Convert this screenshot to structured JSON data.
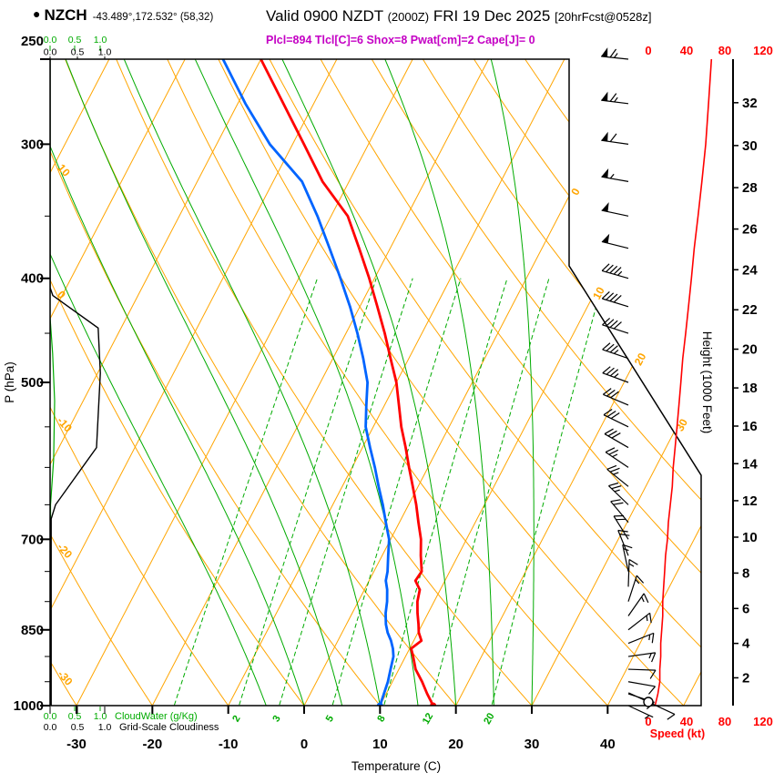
{
  "header": {
    "bullet": "●",
    "station": "NZCH",
    "coords": "-43.489°,172.532° (58,32)",
    "valid_time": "Valid 0900 NZDT",
    "valid_utc": "(2000Z)",
    "valid_date": "FRI 19 Dec 2025",
    "fcst_ref": "[20hrFcst@0528z]",
    "indices": "Plcl=894 Tlcl[C]=6 Shox=8 Pwat[cm]=2 Cape[J]= 0"
  },
  "chart_data": {
    "type": "line",
    "subtype": "skew-t log-p sounding",
    "pressure_axis": {
      "label": "P (hPa)",
      "units": "hPa",
      "range": [
        1000,
        250
      ],
      "major_ticks": [
        250,
        300,
        400,
        500,
        700,
        850,
        1000
      ],
      "minor_ticks": [
        350,
        450,
        550,
        600,
        650,
        750,
        800,
        900,
        950
      ]
    },
    "temperature_axis": {
      "label": "Temperature (C)",
      "units": "C",
      "ticks": [
        -30,
        -20,
        -10,
        0,
        10,
        20,
        30,
        40
      ]
    },
    "height_axis": {
      "label": "Height (1000 Feet)",
      "units": "1000 ft",
      "ticks": [
        2,
        4,
        6,
        8,
        10,
        12,
        14,
        16,
        18,
        20,
        22,
        24,
        26,
        28,
        30,
        32
      ]
    },
    "speed_axis": {
      "label": "Speed (kt)",
      "units": "kt",
      "ticks": [
        0,
        40,
        80,
        120
      ]
    },
    "cloud_axes": {
      "ticks": [
        "0.0",
        "0.5",
        "1.0"
      ],
      "cloudwater_label": "CloudWater (g/Kg)",
      "cloudiness_label": "Grid-Scale Cloudiness"
    },
    "background_lines": {
      "isotherms_c": {
        "min": -70,
        "max": 50,
        "step": 10
      },
      "dry_adiabats_c": {
        "min": -30,
        "max": 140,
        "step": 10
      },
      "dry_adiabat_edge_labels": [
        10,
        0,
        -10,
        -20,
        -30
      ],
      "isotherm_edge_labels": [
        0,
        10,
        20,
        30
      ],
      "mixing_ratio_gkg": [
        1,
        2,
        3,
        5,
        8,
        12,
        20
      ],
      "moist_adiabats_c": [
        -5,
        0,
        5,
        10,
        15,
        20,
        25,
        30
      ]
    },
    "temperature_profile": [
      [
        1000,
        17
      ],
      [
        975,
        15.4
      ],
      [
        950,
        13.9
      ],
      [
        925,
        12.2
      ],
      [
        900,
        11
      ],
      [
        885,
        10.2
      ],
      [
        870,
        11
      ],
      [
        855,
        10.1
      ],
      [
        840,
        9.5
      ],
      [
        820,
        8.6
      ],
      [
        800,
        7.8
      ],
      [
        780,
        7.3
      ],
      [
        765,
        6.1
      ],
      [
        750,
        6.3
      ],
      [
        725,
        5.1
      ],
      [
        700,
        4
      ],
      [
        675,
        2.5
      ],
      [
        650,
        1
      ],
      [
        625,
        -0.7
      ],
      [
        600,
        -2.5
      ],
      [
        575,
        -4.3
      ],
      [
        550,
        -6.3
      ],
      [
        525,
        -8.1
      ],
      [
        500,
        -10
      ],
      [
        475,
        -12.4
      ],
      [
        450,
        -14.9
      ],
      [
        425,
        -17.7
      ],
      [
        400,
        -20.7
      ],
      [
        375,
        -24.1
      ],
      [
        350,
        -27.8
      ],
      [
        325,
        -33.5
      ],
      [
        300,
        -38.5
      ],
      [
        275,
        -44
      ],
      [
        250,
        -50
      ]
    ],
    "dewpoint_profile": [
      [
        1000,
        10
      ],
      [
        975,
        9.7
      ],
      [
        950,
        9.4
      ],
      [
        925,
        8.9
      ],
      [
        900,
        8.4
      ],
      [
        885,
        7.8
      ],
      [
        870,
        7
      ],
      [
        855,
        6
      ],
      [
        840,
        5.2
      ],
      [
        820,
        4.4
      ],
      [
        800,
        3.8
      ],
      [
        780,
        3
      ],
      [
        765,
        2.2
      ],
      [
        750,
        1.8
      ],
      [
        725,
        0.8
      ],
      [
        700,
        -0.2
      ],
      [
        675,
        -1.8
      ],
      [
        650,
        -3.4
      ],
      [
        625,
        -5.2
      ],
      [
        600,
        -7
      ],
      [
        575,
        -9
      ],
      [
        550,
        -11
      ],
      [
        525,
        -12.4
      ],
      [
        500,
        -13.8
      ],
      [
        475,
        -16
      ],
      [
        450,
        -18.5
      ],
      [
        425,
        -21.3
      ],
      [
        400,
        -24.5
      ],
      [
        375,
        -28
      ],
      [
        350,
        -31.8
      ],
      [
        325,
        -36.2
      ],
      [
        300,
        -43
      ],
      [
        275,
        -49
      ],
      [
        250,
        -55
      ]
    ],
    "wind_profile_p_dir_kt": [
      [
        1000,
        115,
        7
      ],
      [
        975,
        108,
        10
      ],
      [
        950,
        100,
        12
      ],
      [
        925,
        92,
        12
      ],
      [
        900,
        82,
        13
      ],
      [
        875,
        68,
        13
      ],
      [
        850,
        52,
        14
      ],
      [
        825,
        35,
        15
      ],
      [
        800,
        18,
        15
      ],
      [
        775,
        2,
        16
      ],
      [
        750,
        348,
        17
      ],
      [
        725,
        338,
        18
      ],
      [
        700,
        328,
        20
      ],
      [
        675,
        320,
        21
      ],
      [
        650,
        314,
        23
      ],
      [
        625,
        309,
        25
      ],
      [
        600,
        304,
        26
      ],
      [
        575,
        300,
        28
      ],
      [
        550,
        296,
        30
      ],
      [
        525,
        293,
        32
      ],
      [
        500,
        290,
        34
      ],
      [
        475,
        289,
        36
      ],
      [
        450,
        288,
        39
      ],
      [
        425,
        287,
        42
      ],
      [
        400,
        286,
        45
      ],
      [
        375,
        284,
        48
      ],
      [
        350,
        282,
        52
      ],
      [
        325,
        280,
        56
      ],
      [
        300,
        278,
        60
      ],
      [
        275,
        277,
        63
      ],
      [
        250,
        276,
        66
      ]
    ],
    "surface_barb": {
      "dir": 115,
      "kt": 10
    },
    "cloudiness_profile_p_frac": [
      [
        1000,
        0.02
      ],
      [
        670,
        0.02
      ],
      [
        650,
        0.1
      ],
      [
        575,
        0.85
      ],
      [
        490,
        0.92
      ],
      [
        445,
        0.88
      ],
      [
        415,
        0.05
      ],
      [
        408,
        0
      ],
      [
        250,
        0
      ]
    ],
    "cloudwater_profile_p_gkg": [
      [
        1000,
        0.01
      ],
      [
        650,
        0.01
      ],
      [
        590,
        0.07
      ],
      [
        520,
        0.09
      ],
      [
        470,
        0.05
      ],
      [
        435,
        0
      ],
      [
        250,
        0
      ]
    ],
    "colors": {
      "grid_orange": "#ffa500",
      "grid_green": "#00ab00",
      "temperature": "#ff0000",
      "dewpoint": "#0064ff",
      "speed": "#ff0000",
      "indices_magenta": "#c400c4",
      "wind_black": "#000000"
    }
  }
}
